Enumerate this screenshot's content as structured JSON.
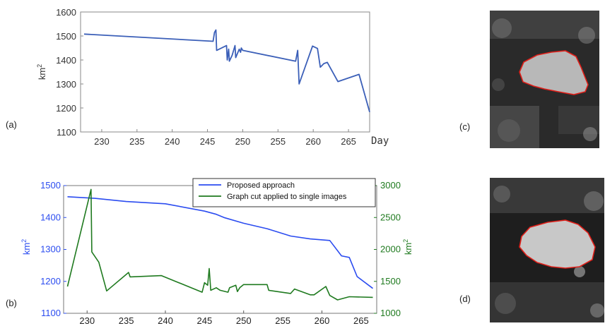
{
  "labels": {
    "a": "(a)",
    "b": "(b)",
    "c": "(c)",
    "d": "(d)"
  },
  "colors": {
    "blue": "#3b5fb8",
    "blue_b": "#2b4cf0",
    "green": "#1f7a1f",
    "ice_outline": "#e0201a"
  },
  "chart_data": [
    {
      "type": "line",
      "panel": "a",
      "title": "",
      "xlabel": "Day",
      "ylabel": "km2",
      "xlim": [
        227,
        268
      ],
      "ylim": [
        1100,
        1600
      ],
      "x_ticks": [
        "230",
        "235",
        "240",
        "245",
        "250",
        "255",
        "260",
        "265"
      ],
      "y_ticks": [
        "1100",
        "1200",
        "1300",
        "1400",
        "1500",
        "1600"
      ],
      "grid": false,
      "series": [
        {
          "color": "#3b5fb8",
          "points": [
            [
              227.5,
              1508
            ],
            [
              245.8,
              1478
            ],
            [
              246.0,
              1515
            ],
            [
              246.2,
              1525
            ],
            [
              246.3,
              1440
            ],
            [
              247.7,
              1460
            ],
            [
              247.8,
              1400
            ],
            [
              248.0,
              1445
            ],
            [
              248.1,
              1395
            ],
            [
              248.5,
              1420
            ],
            [
              248.9,
              1460
            ],
            [
              249.0,
              1410
            ],
            [
              249.5,
              1445
            ],
            [
              249.7,
              1432
            ],
            [
              249.8,
              1450
            ],
            [
              250.0,
              1440
            ],
            [
              257.5,
              1395
            ],
            [
              257.8,
              1440
            ],
            [
              258.0,
              1300
            ],
            [
              259.9,
              1458
            ],
            [
              260.6,
              1448
            ],
            [
              261.0,
              1370
            ],
            [
              261.5,
              1385
            ],
            [
              262.0,
              1390
            ],
            [
              263.5,
              1310
            ],
            [
              266.5,
              1340
            ],
            [
              268.0,
              1183
            ]
          ]
        }
      ]
    },
    {
      "type": "line",
      "panel": "b",
      "title": "",
      "xlabel": "",
      "ylabel": "km2",
      "y2label": "km2",
      "xlim": [
        227,
        267
      ],
      "ylim": [
        1100,
        1500
      ],
      "y2lim": [
        1000,
        3000
      ],
      "x_ticks": [
        "230",
        "240",
        "250",
        "260"
      ],
      "y_ticks": [
        "1100",
        "1200",
        "1300",
        "1400",
        "1500"
      ],
      "y2_ticks": [
        "1000",
        "1500",
        "2000",
        "2500",
        "3000"
      ],
      "legend_position": "top-right",
      "grid": false,
      "series": [
        {
          "name": "Proposed approach",
          "axis": "left",
          "color": "#2b4cf0",
          "points": [
            [
              227.5,
              1465
            ],
            [
              231.0,
              1460
            ],
            [
              235.0,
              1450
            ],
            [
              240.0,
              1443
            ],
            [
              245.0,
              1420
            ],
            [
              246.5,
              1410
            ],
            [
              247.5,
              1400
            ],
            [
              250.0,
              1382
            ],
            [
              253.0,
              1365
            ],
            [
              256.0,
              1342
            ],
            [
              258.5,
              1333
            ],
            [
              261.0,
              1328
            ],
            [
              262.5,
              1280
            ],
            [
              263.5,
              1275
            ],
            [
              264.5,
              1215
            ],
            [
              266.5,
              1178
            ]
          ]
        },
        {
          "name": "Graph cut applied to single images",
          "axis": "right",
          "color": "#1f7a1f",
          "points": [
            [
              227.5,
              1420
            ],
            [
              230.5,
              2940
            ],
            [
              230.6,
              1960
            ],
            [
              231.5,
              1800
            ],
            [
              232.5,
              1350
            ],
            [
              235.3,
              1640
            ],
            [
              235.5,
              1570
            ],
            [
              239.5,
              1590
            ],
            [
              244.7,
              1330
            ],
            [
              245.0,
              1480
            ],
            [
              245.4,
              1440
            ],
            [
              245.6,
              1700
            ],
            [
              245.8,
              1360
            ],
            [
              246.5,
              1400
            ],
            [
              247.0,
              1360
            ],
            [
              248.0,
              1330
            ],
            [
              248.2,
              1400
            ],
            [
              249.0,
              1440
            ],
            [
              249.2,
              1340
            ],
            [
              249.5,
              1400
            ],
            [
              250.0,
              1450
            ],
            [
              253.0,
              1450
            ],
            [
              253.2,
              1360
            ],
            [
              256.0,
              1310
            ],
            [
              256.5,
              1380
            ],
            [
              258.5,
              1290
            ],
            [
              259.0,
              1290
            ],
            [
              260.5,
              1420
            ],
            [
              261.0,
              1280
            ],
            [
              262.0,
              1210
            ],
            [
              263.5,
              1260
            ],
            [
              266.5,
              1250
            ]
          ]
        }
      ]
    }
  ]
}
